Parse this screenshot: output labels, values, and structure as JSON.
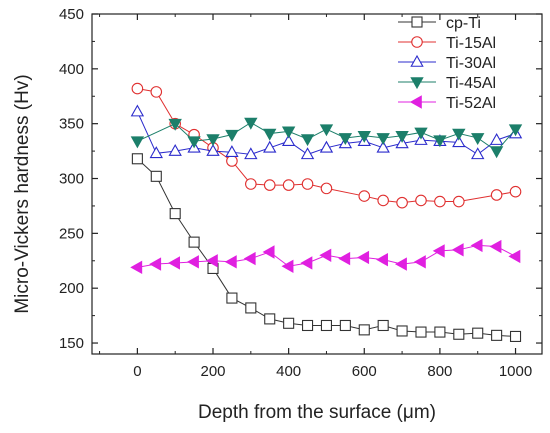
{
  "chart_data": {
    "type": "line",
    "xlabel": "Depth from the surface (μm)",
    "ylabel": "Micro-Vickers hardness (Hv)",
    "xlim": [
      -120,
      1070
    ],
    "ylim": [
      140,
      450
    ],
    "xticks": [
      0,
      200,
      400,
      600,
      800,
      1000
    ],
    "yticks": [
      150,
      200,
      250,
      300,
      350,
      400,
      450
    ],
    "grid": false,
    "legend": "top-right",
    "series": [
      {
        "name": "cp-Ti",
        "color": "#333333",
        "marker": "square",
        "fill": "none",
        "x": [
          0,
          50,
          100,
          150,
          200,
          250,
          300,
          350,
          400,
          450,
          500,
          550,
          600,
          650,
          700,
          750,
          800,
          850,
          900,
          950,
          1000
        ],
        "y": [
          318,
          302,
          268,
          242,
          218,
          191,
          182,
          172,
          168,
          166,
          166,
          166,
          162,
          166,
          161,
          160,
          160,
          158,
          159,
          157,
          156
        ]
      },
      {
        "name": "Ti-15Al",
        "color": "#e03030",
        "marker": "circle",
        "fill": "none",
        "x": [
          0,
          50,
          100,
          150,
          200,
          250,
          300,
          350,
          400,
          450,
          500,
          600,
          650,
          700,
          750,
          800,
          850,
          950,
          1000
        ],
        "y": [
          382,
          379,
          350,
          340,
          328,
          316,
          295,
          294,
          294,
          295,
          291,
          284,
          280,
          278,
          280,
          279,
          279,
          285,
          288
        ]
      },
      {
        "name": "Ti-30Al",
        "color": "#2b2bcc",
        "marker": "triangle-up",
        "fill": "none",
        "x": [
          0,
          50,
          100,
          150,
          200,
          250,
          300,
          350,
          400,
          450,
          500,
          550,
          600,
          650,
          700,
          750,
          800,
          850,
          900,
          950,
          1000
        ],
        "y": [
          361,
          323,
          325,
          328,
          325,
          324,
          322,
          328,
          334,
          322,
          328,
          332,
          334,
          328,
          332,
          335,
          334,
          333,
          322,
          335,
          341
        ]
      },
      {
        "name": "Ti-45Al",
        "color": "#1c7f6a",
        "marker": "triangle-down",
        "fill": "filled",
        "x": [
          0,
          100,
          150,
          200,
          250,
          300,
          350,
          400,
          450,
          500,
          550,
          600,
          650,
          700,
          750,
          800,
          850,
          900,
          950,
          1000
        ],
        "y": [
          334,
          350,
          334,
          336,
          340,
          351,
          341,
          343,
          336,
          345,
          337,
          339,
          337,
          339,
          342,
          335,
          341,
          337,
          325,
          345
        ]
      },
      {
        "name": "Ti-52Al",
        "color": "#e020e0",
        "marker": "triangle-left",
        "fill": "filled",
        "x": [
          0,
          50,
          100,
          150,
          200,
          250,
          300,
          350,
          400,
          450,
          500,
          550,
          600,
          650,
          700,
          750,
          800,
          850,
          900,
          950,
          1000
        ],
        "y": [
          219,
          222,
          223,
          224,
          225,
          224,
          227,
          233,
          220,
          223,
          230,
          227,
          228,
          226,
          222,
          224,
          234,
          235,
          239,
          238,
          229
        ]
      }
    ]
  }
}
